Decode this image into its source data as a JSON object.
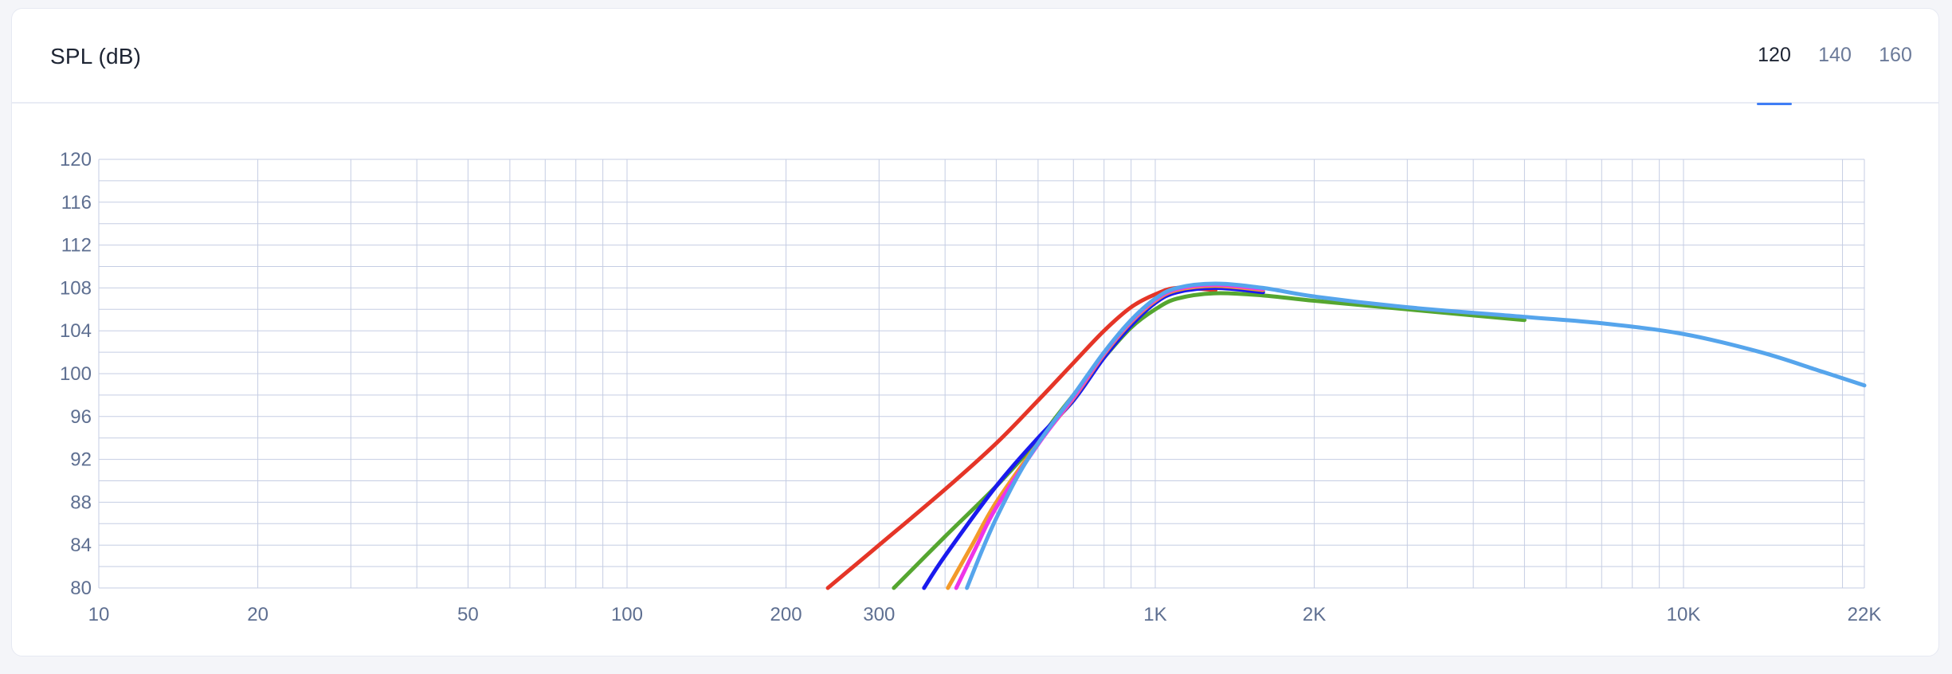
{
  "card": {
    "title": "SPL (dB)",
    "tabs": [
      {
        "label": "120",
        "active": true
      },
      {
        "label": "140",
        "active": false
      },
      {
        "label": "160",
        "active": false
      }
    ]
  },
  "colors": {
    "grid": "#c5cde3",
    "tab_accent": "#3f7df5"
  },
  "chart_data": {
    "type": "line",
    "title": "SPL (dB)",
    "xlabel": "",
    "ylabel": "",
    "x_scale": "log",
    "xlim": [
      10,
      22000
    ],
    "ylim": [
      80,
      120
    ],
    "grid": true,
    "legend": "none",
    "x_ticks": [
      {
        "value": 10,
        "label": "10"
      },
      {
        "value": 20,
        "label": "20"
      },
      {
        "value": 50,
        "label": "50"
      },
      {
        "value": 100,
        "label": "100"
      },
      {
        "value": 200,
        "label": "200"
      },
      {
        "value": 300,
        "label": "300"
      },
      {
        "value": 1000,
        "label": "1K"
      },
      {
        "value": 2000,
        "label": "2K"
      },
      {
        "value": 10000,
        "label": "10K"
      },
      {
        "value": 22000,
        "label": "22K"
      }
    ],
    "y_ticks": [
      120,
      116,
      112,
      108,
      104,
      100,
      96,
      92,
      88,
      84,
      80
    ],
    "series": [
      {
        "color": "#e53527",
        "points": [
          [
            240,
            80
          ],
          [
            300,
            84
          ],
          [
            400,
            89.2
          ],
          [
            500,
            93.5
          ],
          [
            600,
            97.5
          ],
          [
            700,
            101
          ],
          [
            800,
            104
          ],
          [
            900,
            106.2
          ],
          [
            1000,
            107.4
          ],
          [
            1100,
            108
          ],
          [
            1300,
            107.8
          ]
        ]
      },
      {
        "color": "#55a630",
        "points": [
          [
            320,
            80
          ],
          [
            400,
            84.8
          ],
          [
            500,
            89.5
          ],
          [
            600,
            93.8
          ],
          [
            650,
            96
          ],
          [
            700,
            98
          ],
          [
            800,
            101.5
          ],
          [
            900,
            104.3
          ],
          [
            1000,
            106
          ],
          [
            1100,
            107
          ],
          [
            1300,
            107.5
          ],
          [
            1600,
            107.3
          ],
          [
            2000,
            106.8
          ],
          [
            3000,
            106
          ],
          [
            5000,
            105
          ]
        ]
      },
      {
        "color": "#1a1aee",
        "points": [
          [
            365,
            80
          ],
          [
            400,
            83
          ],
          [
            500,
            89.5
          ],
          [
            600,
            94
          ],
          [
            700,
            97.5
          ],
          [
            800,
            101.5
          ],
          [
            900,
            104.5
          ],
          [
            1000,
            106.6
          ],
          [
            1100,
            107.6
          ],
          [
            1300,
            108
          ],
          [
            1600,
            107.6
          ]
        ]
      },
      {
        "color": "#f39a2a",
        "points": [
          [
            405,
            80
          ],
          [
            450,
            84
          ],
          [
            500,
            88
          ],
          [
            600,
            93.5
          ],
          [
            700,
            97.7
          ],
          [
            800,
            101.8
          ],
          [
            900,
            104.8
          ],
          [
            1000,
            106.8
          ],
          [
            1100,
            107.8
          ],
          [
            1300,
            108.2
          ],
          [
            1600,
            107.8
          ]
        ]
      },
      {
        "color": "#ee35e8",
        "points": [
          [
            420,
            80
          ],
          [
            460,
            84
          ],
          [
            500,
            87.5
          ],
          [
            600,
            93.4
          ],
          [
            700,
            97.8
          ],
          [
            800,
            101.9
          ],
          [
            900,
            104.9
          ],
          [
            1000,
            106.9
          ],
          [
            1100,
            107.9
          ],
          [
            1300,
            108.3
          ],
          [
            1600,
            107.9
          ]
        ]
      },
      {
        "color": "#56a5ec",
        "points": [
          [
            440,
            80
          ],
          [
            470,
            83.5
          ],
          [
            500,
            86.5
          ],
          [
            550,
            90.5
          ],
          [
            600,
            93.5
          ],
          [
            700,
            98
          ],
          [
            800,
            102
          ],
          [
            900,
            105
          ],
          [
            1000,
            107
          ],
          [
            1100,
            108
          ],
          [
            1300,
            108.4
          ],
          [
            1600,
            108
          ],
          [
            2000,
            107.2
          ],
          [
            3000,
            106.2
          ],
          [
            5000,
            105.3
          ],
          [
            7000,
            104.7
          ],
          [
            10000,
            103.7
          ],
          [
            14000,
            102
          ],
          [
            18000,
            100.3
          ],
          [
            22000,
            98.9
          ]
        ]
      }
    ]
  }
}
